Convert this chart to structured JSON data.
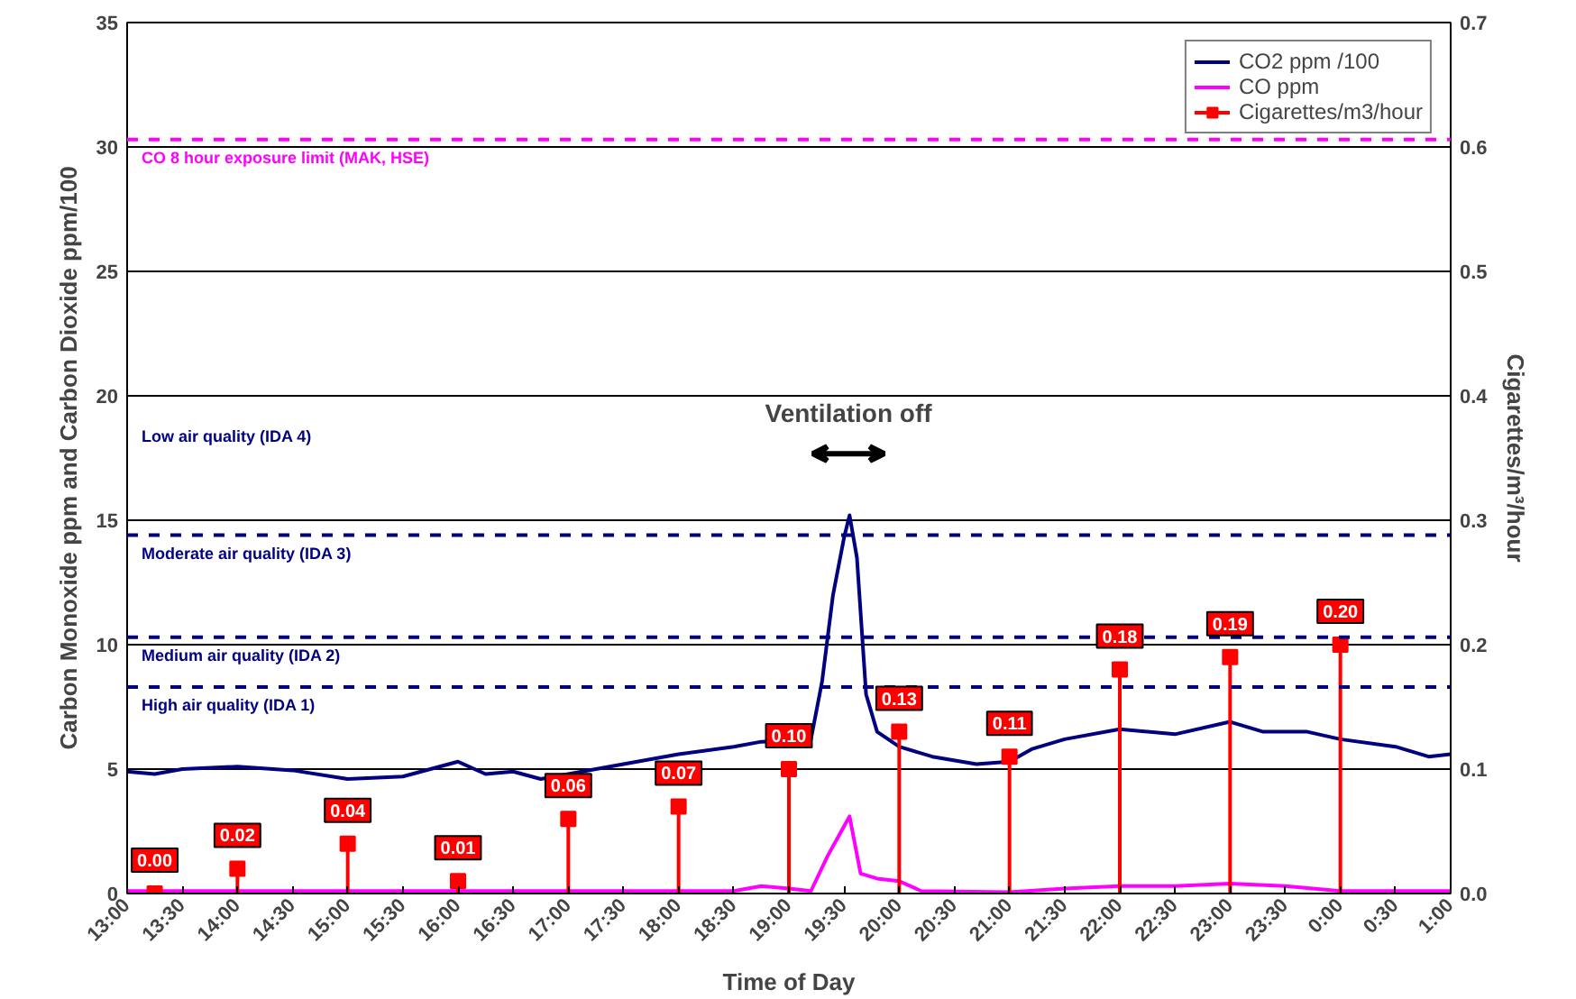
{
  "chart_data": {
    "type": "line",
    "xlabel": "Time of Day",
    "ylabel": "Carbon Monoxide ppm and Carbon Dioxide ppm/100",
    "y2label": "Cigarettes/m³/hour",
    "xlim": [
      "2000-01-01T13:00",
      "2000-01-02T01:00"
    ],
    "xticks": [
      {
        "value": "2000-01-01T13:00",
        "label": "13:00"
      },
      {
        "value": "2000-01-01T13:30",
        "label": "13:30"
      },
      {
        "value": "2000-01-01T14:00",
        "label": "14:00"
      },
      {
        "value": "2000-01-01T14:30",
        "label": "14:30"
      },
      {
        "value": "2000-01-01T15:00",
        "label": "15:00"
      },
      {
        "value": "2000-01-01T15:30",
        "label": "15:30"
      },
      {
        "value": "2000-01-01T16:00",
        "label": "16:00"
      },
      {
        "value": "2000-01-01T16:30",
        "label": "16:30"
      },
      {
        "value": "2000-01-01T17:00",
        "label": "17:00"
      },
      {
        "value": "2000-01-01T17:30",
        "label": "17:30"
      },
      {
        "value": "2000-01-01T18:00",
        "label": "18:00"
      },
      {
        "value": "2000-01-01T18:30",
        "label": "18:30"
      },
      {
        "value": "2000-01-01T19:00",
        "label": "19:00"
      },
      {
        "value": "2000-01-01T19:30",
        "label": "19:30"
      },
      {
        "value": "2000-01-01T20:00",
        "label": "20:00"
      },
      {
        "value": "2000-01-01T20:30",
        "label": "20:30"
      },
      {
        "value": "2000-01-01T21:00",
        "label": "21:00"
      },
      {
        "value": "2000-01-01T21:30",
        "label": "21:30"
      },
      {
        "value": "2000-01-01T22:00",
        "label": "22:00"
      },
      {
        "value": "2000-01-01T22:30",
        "label": "22:30"
      },
      {
        "value": "2000-01-01T23:00",
        "label": "23:00"
      },
      {
        "value": "2000-01-01T23:30",
        "label": "23:30"
      },
      {
        "value": "2000-01-02T00:00",
        "label": "0:00"
      },
      {
        "value": "2000-01-02T00:30",
        "label": "0:30"
      },
      {
        "value": "2000-01-02T01:00",
        "label": "1:00"
      }
    ],
    "ylim": [
      0,
      35
    ],
    "yticks": [
      0,
      5,
      10,
      15,
      20,
      25,
      30,
      35
    ],
    "y2lim": [
      0,
      0.7
    ],
    "y2ticks": [
      {
        "value": 0,
        "label": "0.0"
      },
      0.1,
      0.2,
      0.3,
      0.4,
      0.5,
      0.6,
      0.7
    ],
    "grid": "y",
    "legend": "top right",
    "line_style": "solid",
    "series": [
      {
        "name": "CO2 ppm /100",
        "color": "#000080",
        "marker": "none",
        "x": [
          "2000-01-01T13:00",
          "2000-01-01T13:15",
          "2000-01-01T13:30",
          "2000-01-01T14:00",
          "2000-01-01T14:30",
          "2000-01-01T15:00",
          "2000-01-01T15:30",
          "2000-01-01T16:00",
          "2000-01-01T16:15",
          "2000-01-01T16:30",
          "2000-01-01T16:45",
          "2000-01-01T17:00",
          "2000-01-01T17:30",
          "2000-01-01T18:00",
          "2000-01-01T18:30",
          "2000-01-01T18:45",
          "2000-01-01T19:12",
          "2000-01-01T19:18",
          "2000-01-01T19:24",
          "2000-01-01T19:30",
          "2000-01-01T19:33",
          "2000-01-01T19:37",
          "2000-01-01T19:42",
          "2000-01-01T19:48",
          "2000-01-01T20:00",
          "2000-01-01T20:18",
          "2000-01-01T20:42",
          "2000-01-01T21:00",
          "2000-01-01T21:12",
          "2000-01-01T21:30",
          "2000-01-01T22:00",
          "2000-01-01T22:30",
          "2000-01-01T23:00",
          "2000-01-01T23:18",
          "2000-01-01T23:42",
          "2000-01-02T00:00",
          "2000-01-02T00:30",
          "2000-01-02T00:48",
          "2000-01-02T01:00"
        ],
        "values": [
          4.9,
          4.8,
          5.0,
          5.1,
          4.95,
          4.6,
          4.7,
          5.3,
          4.8,
          4.9,
          4.6,
          4.8,
          5.2,
          5.6,
          5.9,
          6.1,
          6.2,
          8.5,
          12.0,
          14.3,
          15.2,
          13.5,
          8.0,
          6.5,
          5.9,
          5.5,
          5.2,
          5.3,
          5.8,
          6.2,
          6.6,
          6.4,
          6.9,
          6.5,
          6.5,
          6.2,
          5.9,
          5.5,
          5.6
        ]
      },
      {
        "name": "CO ppm",
        "color": "#ff00ff",
        "marker": "none",
        "x": [
          "2000-01-01T13:00",
          "2000-01-01T14:00",
          "2000-01-01T15:00",
          "2000-01-01T16:00",
          "2000-01-01T17:00",
          "2000-01-01T18:00",
          "2000-01-01T18:30",
          "2000-01-01T18:45",
          "2000-01-01T19:00",
          "2000-01-01T19:12",
          "2000-01-01T19:21",
          "2000-01-01T19:27",
          "2000-01-01T19:33",
          "2000-01-01T19:39",
          "2000-01-01T19:48",
          "2000-01-01T20:00",
          "2000-01-01T20:12",
          "2000-01-01T21:00",
          "2000-01-01T21:30",
          "2000-01-01T22:00",
          "2000-01-01T22:30",
          "2000-01-01T23:00",
          "2000-01-01T23:30",
          "2000-01-02T00:00",
          "2000-01-02T01:00"
        ],
        "values": [
          0.1,
          0.1,
          0.1,
          0.1,
          0.1,
          0.1,
          0.1,
          0.3,
          0.2,
          0.1,
          1.5,
          2.3,
          3.1,
          0.8,
          0.6,
          0.5,
          0.1,
          0.05,
          0.2,
          0.3,
          0.3,
          0.4,
          0.3,
          0.1,
          0.1
        ]
      },
      {
        "name": "Cigarettes/m3/hour",
        "color": "#ff0000",
        "type": "lollipop",
        "axis": "y2",
        "marker": "square",
        "x": [
          "2000-01-01T13:15",
          "2000-01-01T14:00",
          "2000-01-01T15:00",
          "2000-01-01T16:00",
          "2000-01-01T17:00",
          "2000-01-01T18:00",
          "2000-01-01T19:00",
          "2000-01-01T20:00",
          "2000-01-01T21:00",
          "2000-01-01T22:00",
          "2000-01-01T23:00",
          "2000-01-02T00:00"
        ],
        "values": [
          0.0,
          0.02,
          0.04,
          0.01,
          0.06,
          0.07,
          0.1,
          0.13,
          0.11,
          0.18,
          0.19,
          0.2
        ],
        "value_labels": [
          "0.00",
          "0.02",
          "0.04",
          "0.01",
          "0.06",
          "0.07",
          "0.10",
          "0.13",
          "0.11",
          "0.18",
          "0.19",
          "0.20"
        ]
      }
    ],
    "ref_lines": [
      {
        "axis": "y",
        "value": 30.3,
        "label": "CO 8 hour exposure limit (MAK, HSE)",
        "color": "#ff00ff",
        "line_style": "dashed"
      },
      {
        "axis": "y",
        "value": 14.4,
        "label": "Moderate air quality (IDA 3)",
        "color": "#000080",
        "line_style": "dashed"
      },
      {
        "axis": "y",
        "value": 10.3,
        "label": "Medium air quality (IDA 2)",
        "color": "#000080",
        "line_style": "dashed"
      },
      {
        "axis": "y",
        "value": 8.3,
        "label": "High air quality (IDA 1)",
        "color": "#000080",
        "line_style": "dashed"
      }
    ],
    "annotations": [
      "Low air quality (IDA 4)",
      "Ventilation off"
    ]
  }
}
